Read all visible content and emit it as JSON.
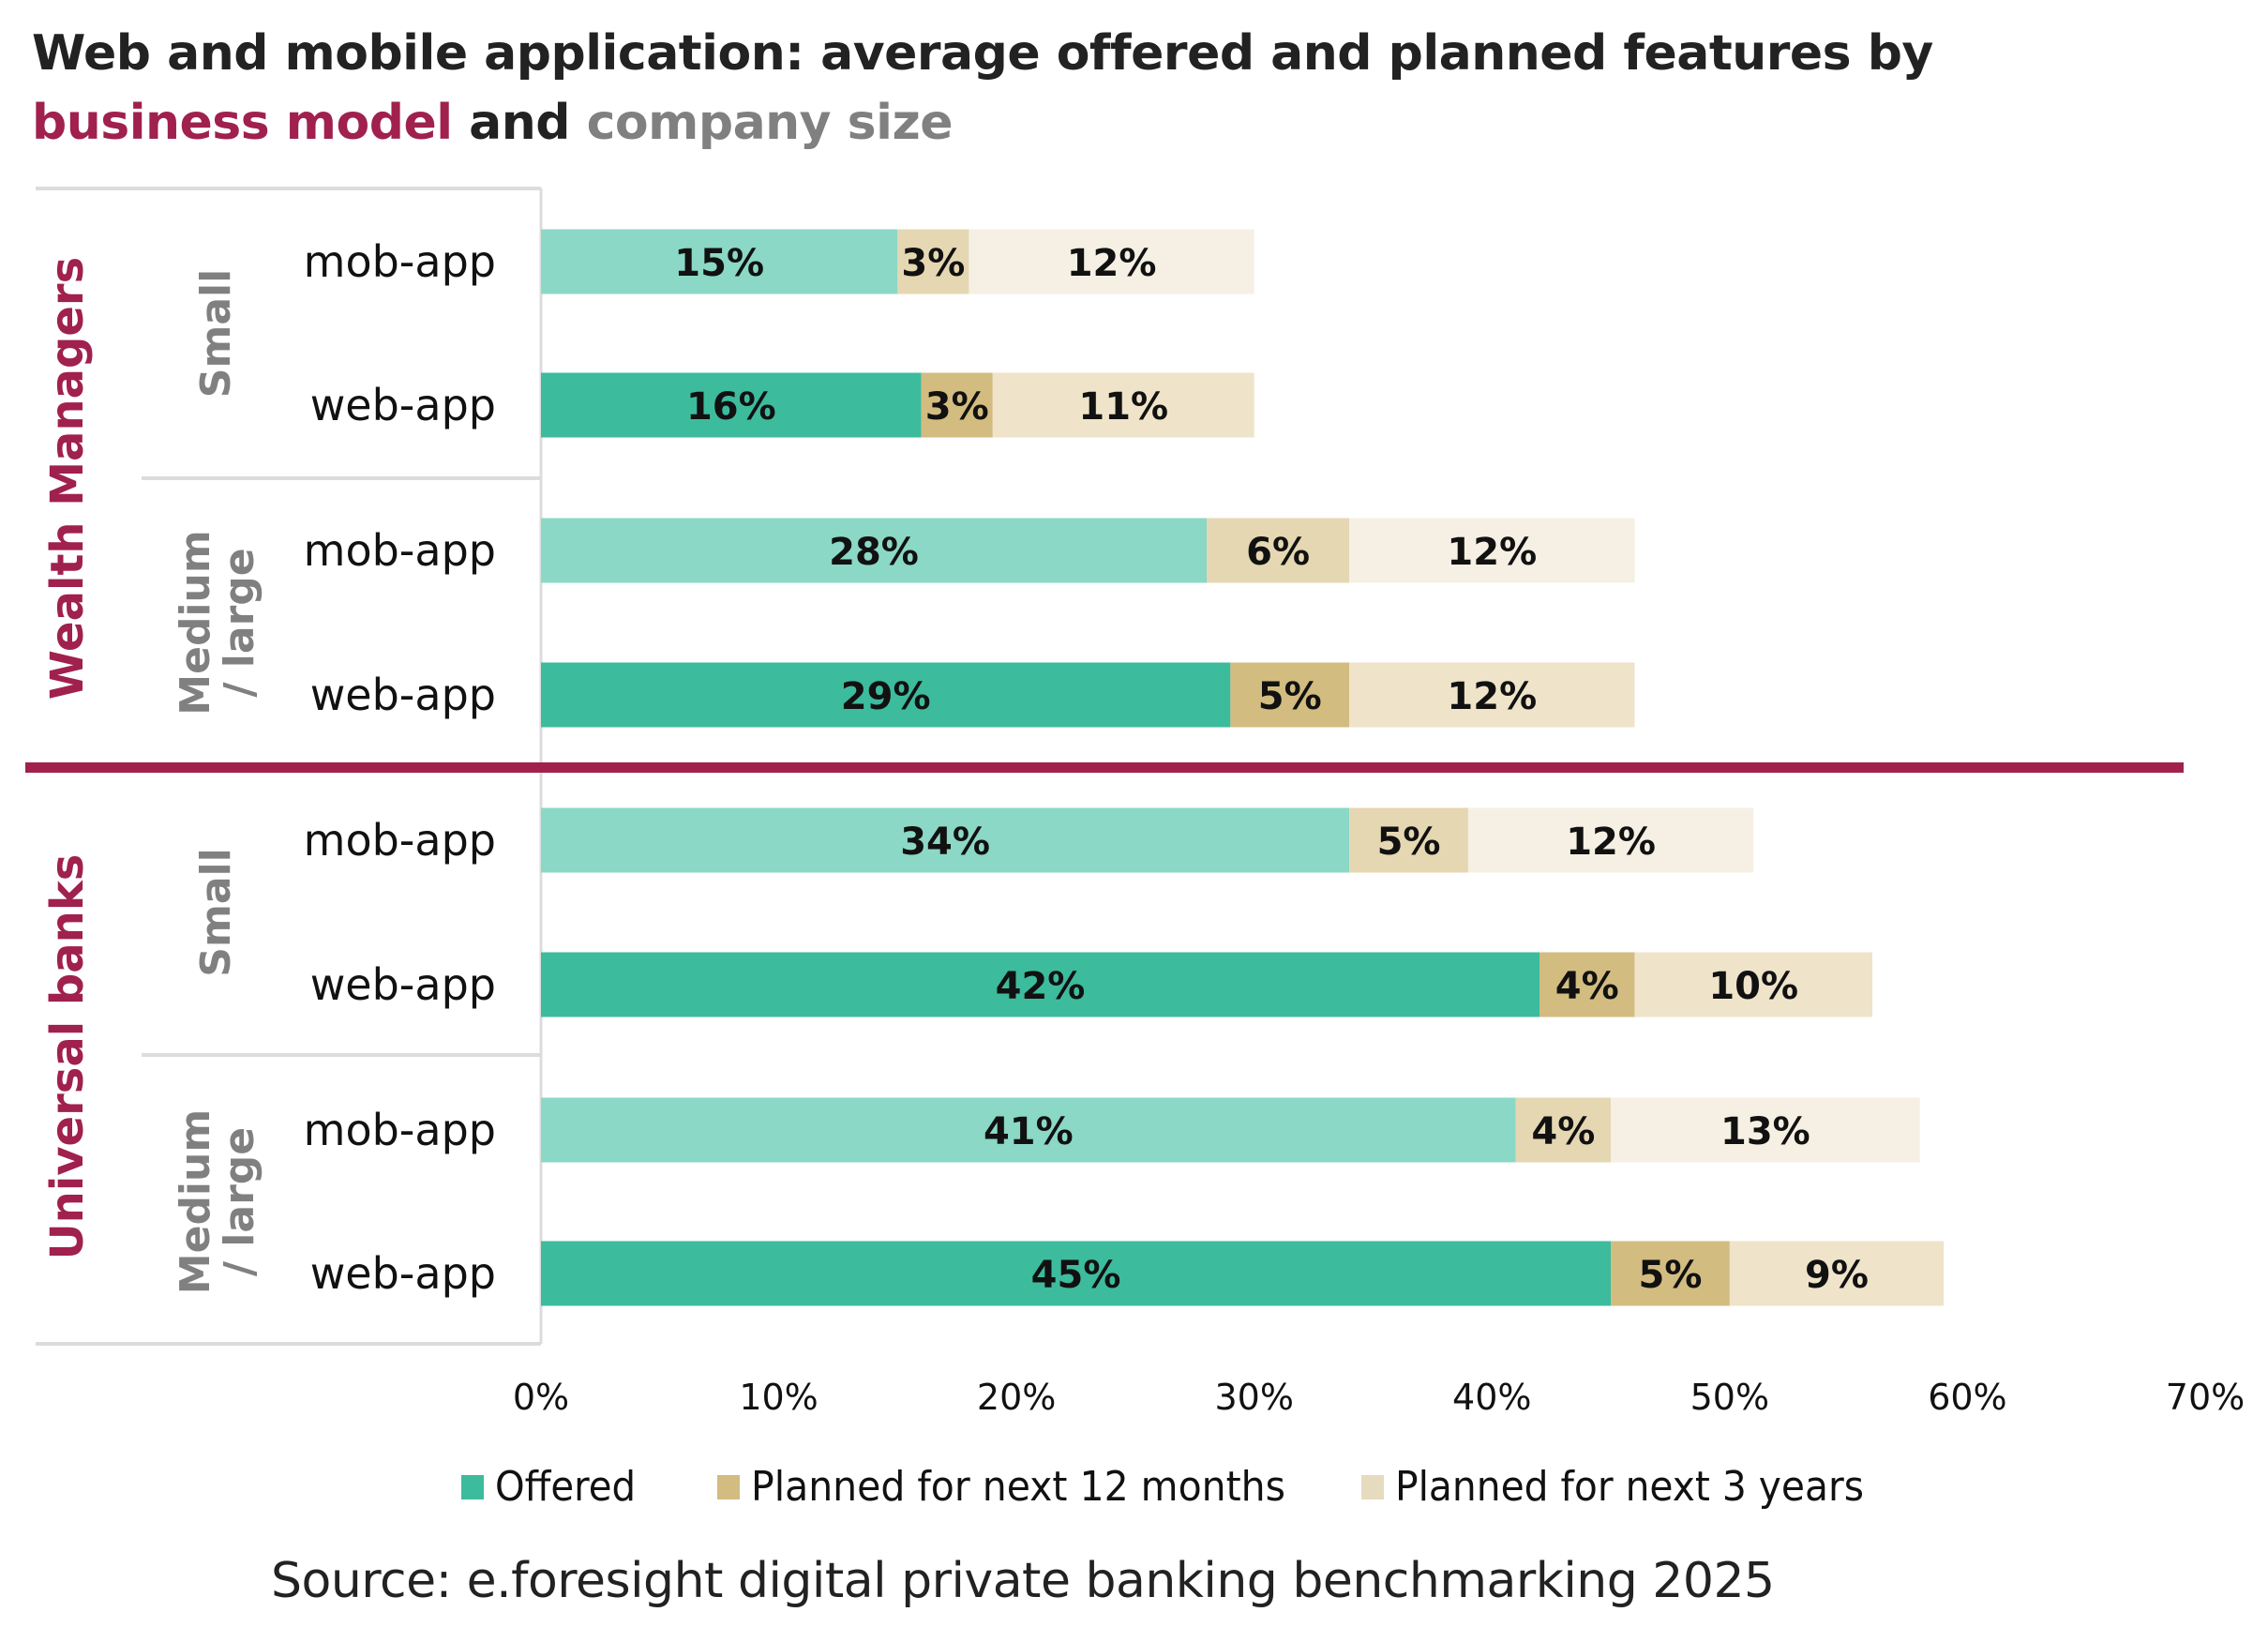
{
  "chart_data": {
    "type": "bar",
    "orientation": "horizontal",
    "stacked": true,
    "title_parts": {
      "prefix": "Web and mobile application: average offered and planned features by",
      "business_model": "business model",
      "and": "and",
      "company_size": "company size"
    },
    "groups": [
      {
        "label": "Wealth Managers",
        "subgroups": [
          {
            "label": "Small",
            "rows": [
              {
                "label": "mob-app",
                "values": [
                  15,
                  3,
                  12
                ]
              },
              {
                "label": "web-app",
                "values": [
                  16,
                  3,
                  11
                ]
              }
            ]
          },
          {
            "label": "Medium / large",
            "rows": [
              {
                "label": "mob-app",
                "values": [
                  28,
                  6,
                  12
                ]
              },
              {
                "label": "web-app",
                "values": [
                  29,
                  5,
                  12
                ]
              }
            ]
          }
        ]
      },
      {
        "label": "Universal banks",
        "subgroups": [
          {
            "label": "Small",
            "rows": [
              {
                "label": "mob-app",
                "values": [
                  34,
                  5,
                  12
                ]
              },
              {
                "label": "web-app",
                "values": [
                  42,
                  4,
                  10
                ]
              }
            ]
          },
          {
            "label": "Medium / large",
            "rows": [
              {
                "label": "mob-app",
                "values": [
                  41,
                  4,
                  13
                ]
              },
              {
                "label": "web-app",
                "values": [
                  45,
                  5,
                  9
                ]
              }
            ]
          }
        ]
      }
    ],
    "series": [
      {
        "name": "Offered",
        "color_web": "#3dbb9d",
        "color_mob": "#8ad8c5"
      },
      {
        "name": "Planned for next 12 months",
        "color_web": "#d2bc80",
        "color_mob": "#e5d7b2"
      },
      {
        "name": "Planned for next 3 years",
        "color_web": "#efe3c9",
        "color_mob": "#f5f0e3"
      }
    ],
    "legend_colors": [
      "#3dbb9d",
      "#d2bc80",
      "#e6dbbe"
    ],
    "xlim": [
      0,
      70
    ],
    "xticks": [
      "0%",
      "10%",
      "20%",
      "30%",
      "40%",
      "50%",
      "60%",
      "70%"
    ],
    "grid": false,
    "legend_position": "bottom",
    "accent_color": "#a0204e",
    "size_label_color": "#808080"
  },
  "source": "Source: e.foresight digital private banking benchmarking 2025"
}
